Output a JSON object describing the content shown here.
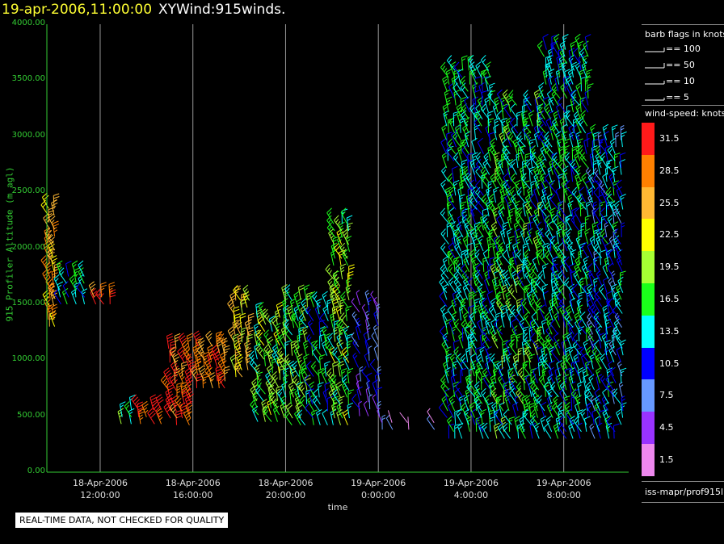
{
  "header": {
    "date_time": "19-apr-2006,11:00:00",
    "title": "XYWind:915winds."
  },
  "chart_data": {
    "type": "scatter",
    "subtype": "wind-barbs",
    "ylabel": "915 Profiler Altitude (m agl)",
    "xlabel": "time",
    "ylim": [
      0,
      4000
    ],
    "y_ticks": [
      "0.00",
      "500.00",
      "1000.00",
      "1500.00",
      "2000.00",
      "2500.00",
      "3000.00",
      "3500.00",
      "4000.00"
    ],
    "x_hours_range": [
      9.7,
      34.8
    ],
    "x_ticks": [
      {
        "hour": 12,
        "line1": "18-Apr-2006",
        "line2": "12:00:00"
      },
      {
        "hour": 16,
        "line1": "18-Apr-2006",
        "line2": "16:00:00"
      },
      {
        "hour": 20,
        "line1": "18-Apr-2006",
        "line2": "20:00:00"
      },
      {
        "hour": 24,
        "line1": "19-Apr-2006",
        "line2": "0:00:00"
      },
      {
        "hour": 28,
        "line1": "19-Apr-2006",
        "line2": "4:00:00"
      },
      {
        "hour": 32,
        "line1": "19-Apr-2006",
        "line2": "8:00:00"
      }
    ],
    "grid": "vertical",
    "barb_legend": {
      "title": "barb flags in knots",
      "items": [
        {
          "value": 100,
          "label": "== 100"
        },
        {
          "value": 50,
          "label": "== 50"
        },
        {
          "value": 10,
          "label": "== 10"
        },
        {
          "value": 5,
          "label": "== 5"
        }
      ]
    },
    "color_legend": {
      "title": "wind-speed: knots",
      "levels": [
        {
          "label": "31.5",
          "color": "#ff1a1a"
        },
        {
          "label": "28.5",
          "color": "#ff8000"
        },
        {
          "label": "25.5",
          "color": "#ffb833"
        },
        {
          "label": "22.5",
          "color": "#ffff00"
        },
        {
          "label": "19.5",
          "color": "#a6ff33"
        },
        {
          "label": "16.5",
          "color": "#1aff1a"
        },
        {
          "label": "13.5",
          "color": "#00ffff"
        },
        {
          "label": "10.5",
          "color": "#0000ff"
        },
        {
          "label": "7.5",
          "color": "#6699ff"
        },
        {
          "label": "4.5",
          "color": "#9933ff"
        },
        {
          "label": "1.5",
          "color": "#ee88ee"
        }
      ]
    },
    "series": [
      {
        "profile_hours": [
          9.8,
          10.0
        ],
        "alt_range": [
          1300,
          2400
        ],
        "speed_knots": 26
      },
      {
        "profile_hours": [
          10.3,
          10.6,
          11.0,
          11.3
        ],
        "alt_range": [
          1500,
          1750
        ],
        "speed_knots": 14
      },
      {
        "profile_hours": [
          11.8,
          12.1,
          12.4
        ],
        "alt_range": [
          1500,
          1600
        ],
        "speed_knots": 28
      },
      {
        "profile_hours": [
          12.9,
          13.3
        ],
        "alt_range": [
          430,
          570
        ],
        "speed_knots": 16
      },
      {
        "profile_hours": [
          13.7,
          14.0,
          14.3,
          14.6
        ],
        "alt_range": [
          430,
          570
        ],
        "speed_knots": 31
      },
      {
        "profile_hours": [
          15.0,
          15.3,
          15.6,
          15.9
        ],
        "alt_range": [
          420,
          1150
        ],
        "speed_knots": 30
      },
      {
        "profile_hours": [
          16.2,
          16.5,
          16.8,
          17.1,
          17.4
        ],
        "alt_range": [
          750,
          1180
        ],
        "speed_knots": 28
      },
      {
        "profile_hours": [
          17.8,
          18.1,
          18.4
        ],
        "alt_range": [
          850,
          1540
        ],
        "speed_knots": 23
      },
      {
        "profile_hours": [
          18.8,
          19.1,
          19.4,
          19.7
        ],
        "alt_range": [
          450,
          1400
        ],
        "speed_knots": 18
      },
      {
        "profile_hours": [
          20.0,
          20.3,
          20.6,
          20.9
        ],
        "alt_range": [
          420,
          1550
        ],
        "speed_knots": 17
      },
      {
        "profile_hours": [
          21.2,
          21.5,
          21.8
        ],
        "alt_range": [
          420,
          1500
        ],
        "speed_knots": 13
      },
      {
        "profile_hours": [
          22.1,
          22.4,
          22.7
        ],
        "alt_range": [
          420,
          2250
        ],
        "speed_knots": 18
      },
      {
        "profile_hours": [
          23.2,
          23.6,
          24.0
        ],
        "alt_range": [
          500,
          1500
        ],
        "speed_knots": 8
      },
      {
        "profile_hours": [
          24.2,
          24.6,
          25.3,
          26.4
        ],
        "alt_range": [
          380,
          450
        ],
        "speed_knots": 4
      },
      {
        "profile_hours": [
          27.0,
          27.3,
          27.6,
          27.9,
          28.2,
          28.5,
          28.8
        ],
        "alt_range": [
          300,
          3600
        ],
        "speed_knots": 14
      },
      {
        "profile_hours": [
          29.1,
          29.4,
          29.7,
          30.0,
          30.3,
          30.6,
          30.9
        ],
        "alt_range": [
          300,
          3300
        ],
        "speed_knots": 15
      },
      {
        "profile_hours": [
          31.2,
          31.5,
          31.8,
          32.1,
          32.4,
          32.7,
          33.0
        ],
        "alt_range": [
          300,
          3800
        ],
        "speed_knots": 14
      },
      {
        "profile_hours": [
          33.3,
          33.6,
          33.9,
          34.2,
          34.5
        ],
        "alt_range": [
          300,
          3000
        ],
        "speed_knots": 12
      }
    ]
  },
  "footer": {
    "source": "iss-mapr/prof915l",
    "notice": "REAL-TIME DATA, NOT CHECKED FOR QUALITY"
  }
}
